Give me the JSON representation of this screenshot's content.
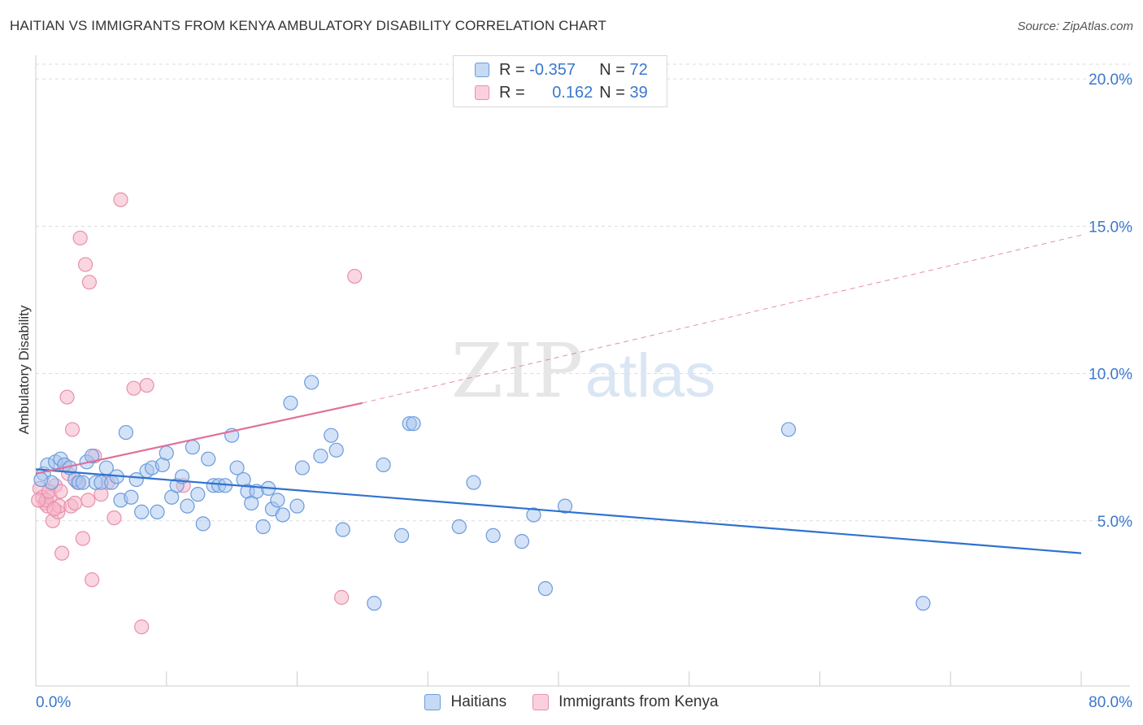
{
  "header": {
    "title": "HAITIAN VS IMMIGRANTS FROM KENYA AMBULATORY DISABILITY CORRELATION CHART",
    "source": "Source: ZipAtlas.com"
  },
  "watermark": {
    "zip": "ZIP",
    "atlas": "atlas"
  },
  "legend_top": {
    "rows": [
      {
        "r_label": "R = ",
        "r_value": "-0.357",
        "n_label": "N = ",
        "n_value": "72",
        "color": "#a7c5ef"
      },
      {
        "r_label": "R = ",
        "r_value": "0.162",
        "n_label": "N = ",
        "n_value": "39",
        "color": "#f6b5c8"
      }
    ]
  },
  "legend_bottom": {
    "items": [
      "Haitians",
      "Immigrants from Kenya"
    ]
  },
  "colors": {
    "haitians_fill": "#a7c5ef",
    "haitians_stroke": "#6b9bdc",
    "haitians_line": "#2f72d0",
    "kenya_fill": "#f6b5c8",
    "kenya_stroke": "#e890ab",
    "kenya_line": "#e0709a",
    "tick_label": "#3a78cc",
    "grid": "#dddddd"
  },
  "chart_data": {
    "type": "scatter",
    "title": "HAITIAN VS IMMIGRANTS FROM KENYA AMBULATORY DISABILITY CORRELATION CHART",
    "xlabel": "",
    "ylabel": "Ambulatory Disability",
    "xlim": [
      0,
      80
    ],
    "ylim": [
      0,
      20.5
    ],
    "x_tick_labels": [
      {
        "value": 0,
        "label": "0.0%"
      },
      {
        "value": 80,
        "label": "80.0%"
      }
    ],
    "y_tick_labels": [
      {
        "value": 5,
        "label": "5.0%"
      },
      {
        "value": 10,
        "label": "10.0%"
      },
      {
        "value": 15,
        "label": "15.0%"
      },
      {
        "value": 20,
        "label": "20.0%"
      }
    ],
    "grid": true,
    "legend_position": "bottom",
    "series": [
      {
        "name": "Haitians",
        "points": [
          [
            0.6,
            6.6
          ],
          [
            0.9,
            6.9
          ],
          [
            1.2,
            6.3
          ],
          [
            1.5,
            7.0
          ],
          [
            1.9,
            7.1
          ],
          [
            2.2,
            6.9
          ],
          [
            2.6,
            6.8
          ],
          [
            3.0,
            6.4
          ],
          [
            3.3,
            6.3
          ],
          [
            3.6,
            6.3
          ],
          [
            3.9,
            7.0
          ],
          [
            4.3,
            7.2
          ],
          [
            4.6,
            6.3
          ],
          [
            5.0,
            6.3
          ],
          [
            5.4,
            6.8
          ],
          [
            5.8,
            6.3
          ],
          [
            6.2,
            6.5
          ],
          [
            6.5,
            5.7
          ],
          [
            6.9,
            8.0
          ],
          [
            7.3,
            5.8
          ],
          [
            7.7,
            6.4
          ],
          [
            8.1,
            5.3
          ],
          [
            8.5,
            6.7
          ],
          [
            8.9,
            6.8
          ],
          [
            9.3,
            5.3
          ],
          [
            9.7,
            6.9
          ],
          [
            10.0,
            7.3
          ],
          [
            10.4,
            5.8
          ],
          [
            10.8,
            6.2
          ],
          [
            11.2,
            6.5
          ],
          [
            11.6,
            5.5
          ],
          [
            12.0,
            7.5
          ],
          [
            12.4,
            5.9
          ],
          [
            12.8,
            4.9
          ],
          [
            13.2,
            7.1
          ],
          [
            13.6,
            6.2
          ],
          [
            14.0,
            6.2
          ],
          [
            14.5,
            6.2
          ],
          [
            15.0,
            7.9
          ],
          [
            15.4,
            6.8
          ],
          [
            15.9,
            6.4
          ],
          [
            16.2,
            6.0
          ],
          [
            16.5,
            5.6
          ],
          [
            16.9,
            6.0
          ],
          [
            17.4,
            4.8
          ],
          [
            17.8,
            6.1
          ],
          [
            18.1,
            5.4
          ],
          [
            18.5,
            5.7
          ],
          [
            18.9,
            5.2
          ],
          [
            19.5,
            9.0
          ],
          [
            20.0,
            5.5
          ],
          [
            20.4,
            6.8
          ],
          [
            21.1,
            9.7
          ],
          [
            21.8,
            7.2
          ],
          [
            22.6,
            7.9
          ],
          [
            23.0,
            7.4
          ],
          [
            23.5,
            4.7
          ],
          [
            25.9,
            2.2
          ],
          [
            26.6,
            6.9
          ],
          [
            28.0,
            4.5
          ],
          [
            28.6,
            8.3
          ],
          [
            28.9,
            8.3
          ],
          [
            32.4,
            4.8
          ],
          [
            33.5,
            6.3
          ],
          [
            35.0,
            4.5
          ],
          [
            37.2,
            4.3
          ],
          [
            38.1,
            5.2
          ],
          [
            39.0,
            2.7
          ],
          [
            40.5,
            5.5
          ],
          [
            57.6,
            8.1
          ],
          [
            67.9,
            2.2
          ],
          [
            0.4,
            6.4
          ]
        ],
        "trend": {
          "x": [
            0,
            80
          ],
          "y": [
            6.75,
            3.9
          ]
        }
      },
      {
        "name": "Immigrants from Kenya",
        "points": [
          [
            0.3,
            6.1
          ],
          [
            0.5,
            5.8
          ],
          [
            0.7,
            5.6
          ],
          [
            0.9,
            5.5
          ],
          [
            1.1,
            5.8
          ],
          [
            1.3,
            5.0
          ],
          [
            1.5,
            6.2
          ],
          [
            1.7,
            5.3
          ],
          [
            1.8,
            5.5
          ],
          [
            2.0,
            3.9
          ],
          [
            2.2,
            6.9
          ],
          [
            2.4,
            9.2
          ],
          [
            2.5,
            6.6
          ],
          [
            2.7,
            5.5
          ],
          [
            2.8,
            8.1
          ],
          [
            3.0,
            5.6
          ],
          [
            3.2,
            6.3
          ],
          [
            3.4,
            14.6
          ],
          [
            3.6,
            4.4
          ],
          [
            3.8,
            13.7
          ],
          [
            4.0,
            5.7
          ],
          [
            4.1,
            13.1
          ],
          [
            4.3,
            3.0
          ],
          [
            4.5,
            7.2
          ],
          [
            5.0,
            5.9
          ],
          [
            5.5,
            6.3
          ],
          [
            6.0,
            5.1
          ],
          [
            6.5,
            15.9
          ],
          [
            7.5,
            9.5
          ],
          [
            8.1,
            1.4
          ],
          [
            8.5,
            9.6
          ],
          [
            11.3,
            6.2
          ],
          [
            23.4,
            2.4
          ],
          [
            24.4,
            13.3
          ],
          [
            0.8,
            5.7
          ],
          [
            1.0,
            6.0
          ],
          [
            1.4,
            5.4
          ],
          [
            1.9,
            6.0
          ],
          [
            0.2,
            5.7
          ]
        ],
        "trend_solid": {
          "x": [
            0,
            25
          ],
          "y": [
            6.6,
            9.0
          ]
        },
        "trend_dashed": {
          "x": [
            25,
            80
          ],
          "y": [
            9.0,
            14.7
          ]
        }
      }
    ]
  }
}
